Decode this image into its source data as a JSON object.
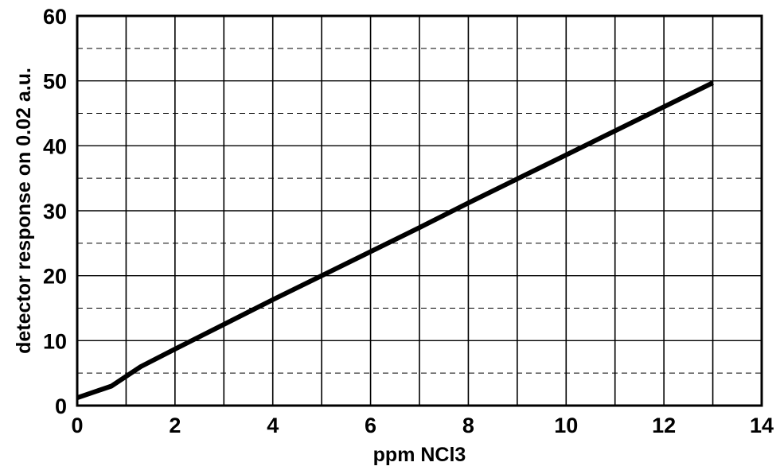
{
  "chart_data": {
    "type": "line",
    "xlabel": "ppm NCl3",
    "ylabel": "detector response on 0.02 a.u.",
    "xlim": [
      0,
      14
    ],
    "ylim": [
      0,
      60
    ],
    "x_ticks": [
      0,
      2,
      4,
      6,
      8,
      10,
      12,
      14
    ],
    "y_ticks": [
      0,
      10,
      20,
      30,
      40,
      50,
      60
    ],
    "x_tick_labels": [
      "0",
      "2",
      "4",
      "6",
      "8",
      "10",
      "12",
      "14"
    ],
    "y_tick_labels": [
      "0",
      "10",
      "20",
      "30",
      "40",
      "50",
      "60"
    ],
    "grid": true,
    "x_grid_step": 1,
    "y_grid_step": 5,
    "series": [
      {
        "x": [
          0,
          0.7,
          1.3,
          2.0,
          3.0,
          4.0,
          5.0,
          6.0,
          7.0,
          8.0,
          9.0,
          10.0,
          11.0,
          12.0,
          13.0
        ],
        "values": [
          1.2,
          3.0,
          6.0,
          8.7,
          12.5,
          16.3,
          20.0,
          23.7,
          27.4,
          31.2,
          34.9,
          38.6,
          42.3,
          46.0,
          49.7
        ],
        "color": "#000000"
      }
    ]
  }
}
